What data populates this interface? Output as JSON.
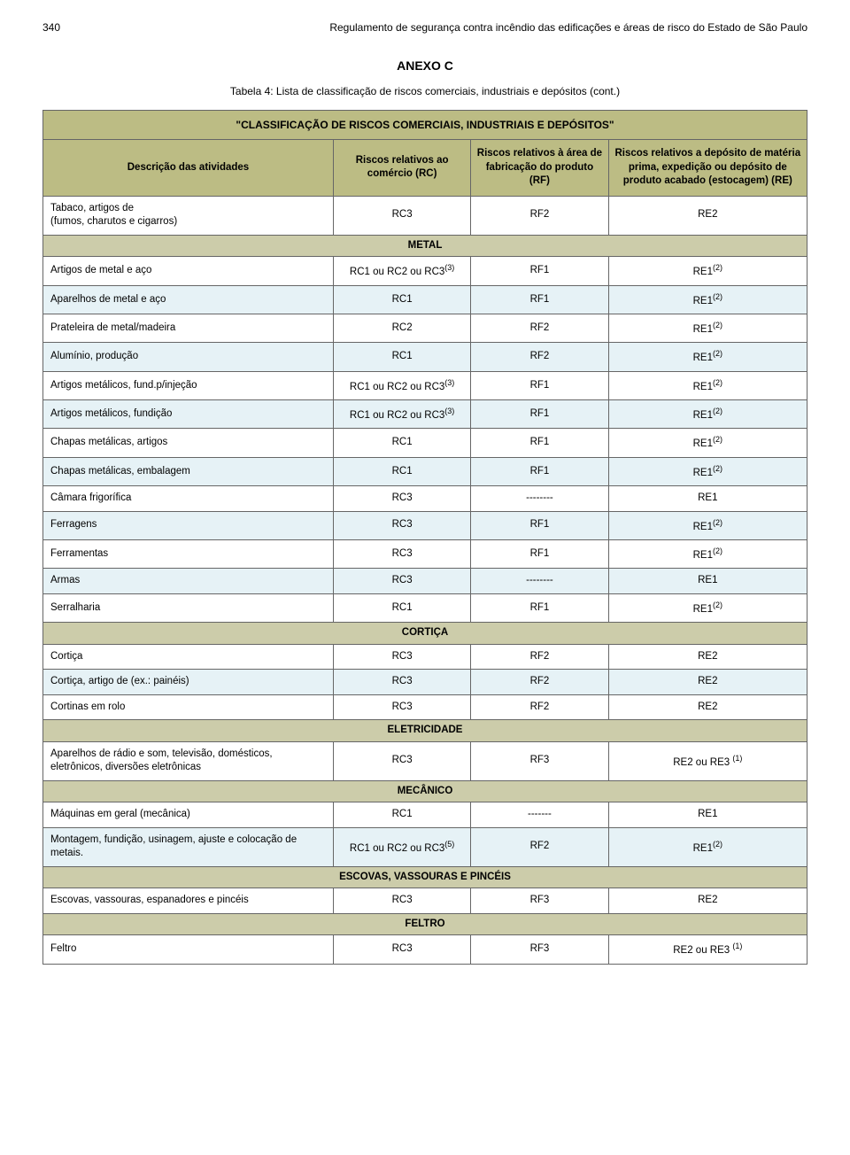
{
  "page_number": "340",
  "page_header": "Regulamento de segurança contra incêndio das edificações e áreas de risco do Estado de São Paulo",
  "anexo_label": "ANEXO C",
  "tabela_title": "Tabela 4: Lista de classificação de riscos comerciais, industriais e depósitos (cont.)",
  "table_title": "\"CLASSIFICAÇÃO DE RISCOS COMERCIAIS, INDUSTRIAIS E DEPÓSITOS\"",
  "colors": {
    "header_bg": "#bcbc84",
    "section_bg": "#ccccaa",
    "alt_row_bg": "#e6f2f6",
    "border": "#666666",
    "page_bg": "#ffffff",
    "text": "#000000"
  },
  "columns": {
    "desc": "Descrição das atividades",
    "rc": "Riscos relativos ao comércio (RC)",
    "rf": "Riscos relativos à área de fabricação do produto (RF)",
    "re": "Riscos relativos a depósito de matéria prima, expedição ou depósito de produto acabado (estocagem) (RE)"
  },
  "pre_section_row": {
    "desc_line1": "Tabaco, artigos de",
    "desc_line2": "(fumos, charutos e cigarros)",
    "rc": "RC3",
    "rf": "RF2",
    "re": "RE2"
  },
  "sections": [
    {
      "name": "METAL",
      "rows": [
        {
          "desc": "Artigos de metal e aço",
          "rc": "RC1 ou RC2 ou RC3",
          "rc_sup": "(3)",
          "rf": "RF1",
          "re": "RE1",
          "re_sup": "(2)"
        },
        {
          "desc": "Aparelhos de metal e aço",
          "rc": "RC1",
          "rf": "RF1",
          "re": "RE1",
          "re_sup": "(2)"
        },
        {
          "desc": "Prateleira de metal/madeira",
          "rc": "RC2",
          "rf": "RF2",
          "re": "RE1",
          "re_sup": "(2)"
        },
        {
          "desc": "Alumínio, produção",
          "rc": "RC1",
          "rf": "RF2",
          "re": "RE1",
          "re_sup": "(2)"
        },
        {
          "desc": "Artigos metálicos, fund.p/injeção",
          "rc": "RC1 ou RC2 ou RC3",
          "rc_sup": "(3)",
          "rf": "RF1",
          "re": "RE1",
          "re_sup": "(2)"
        },
        {
          "desc": "Artigos metálicos, fundição",
          "rc": "RC1 ou RC2 ou RC3",
          "rc_sup": "(3)",
          "rf": "RF1",
          "re": "RE1",
          "re_sup": "(2)"
        },
        {
          "desc": "Chapas metálicas, artigos",
          "rc": "RC1",
          "rf": "RF1",
          "re": "RE1",
          "re_sup": "(2)"
        },
        {
          "desc": "Chapas metálicas, embalagem",
          "rc": "RC1",
          "rf": "RF1",
          "re": "RE1",
          "re_sup": "(2)"
        },
        {
          "desc": "Câmara frigorífica",
          "rc": "RC3",
          "rf": "--------",
          "re": "RE1"
        },
        {
          "desc": "Ferragens",
          "rc": "RC3",
          "rf": "RF1",
          "re": "RE1",
          "re_sup": "(2)"
        },
        {
          "desc": "Ferramentas",
          "rc": "RC3",
          "rf": "RF1",
          "re": "RE1",
          "re_sup": "(2)"
        },
        {
          "desc": "Armas",
          "rc": "RC3",
          "rf": "--------",
          "re": "RE1"
        },
        {
          "desc": "Serralharia",
          "rc": "RC1",
          "rf": "RF1",
          "re": "RE1",
          "re_sup": "(2)"
        }
      ]
    },
    {
      "name": "CORTIÇA",
      "rows": [
        {
          "desc": "Cortiça",
          "rc": "RC3",
          "rf": "RF2",
          "re": "RE2"
        },
        {
          "desc": "Cortiça, artigo de (ex.: painéis)",
          "rc": "RC3",
          "rf": "RF2",
          "re": "RE2"
        },
        {
          "desc": "Cortinas em rolo",
          "rc": "RC3",
          "rf": "RF2",
          "re": "RE2"
        }
      ]
    },
    {
      "name": "ELETRICIDADE",
      "rows": [
        {
          "desc": "Aparelhos de rádio e som, televisão, domésticos, eletrônicos, diversões eletrônicas",
          "rc": "RC3",
          "rf": "RF3",
          "re": "RE2 ou RE3 ",
          "re_sup": "(1)"
        }
      ]
    },
    {
      "name": "MECÂNICO",
      "rows": [
        {
          "desc": "Máquinas em geral (mecânica)",
          "rc": "RC1",
          "rf": "-------",
          "re": "RE1"
        },
        {
          "desc": "Montagem, fundição, usinagem, ajuste e colocação de metais.",
          "rc": "RC1 ou RC2 ou RC3",
          "rc_sup": "(5)",
          "rf": "RF2",
          "re": "RE1",
          "re_sup": "(2)"
        }
      ]
    },
    {
      "name": "ESCOVAS, VASSOURAS E PINCÉIS",
      "rows": [
        {
          "desc": "Escovas, vassouras, espanadores e pincéis",
          "rc": "RC3",
          "rf": "RF3",
          "re": "RE2"
        }
      ]
    },
    {
      "name": "FELTRO",
      "rows": [
        {
          "desc": "Feltro",
          "rc": "RC3",
          "rf": "RF3",
          "re": "RE2 ou RE3 ",
          "re_sup": "(1)"
        }
      ]
    }
  ]
}
